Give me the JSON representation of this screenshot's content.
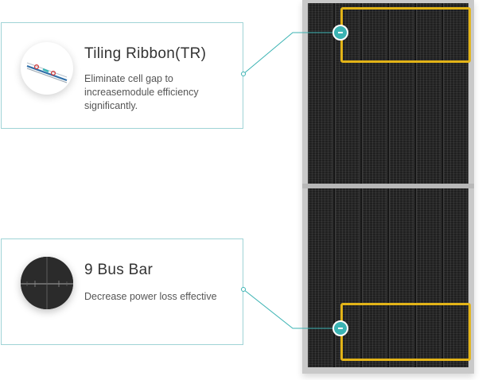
{
  "features": [
    {
      "title": "Tiling Ribbon(TR)",
      "description": "Eliminate cell gap to increasemodule efficiency significantly.",
      "icon": "tiling-ribbon-icon"
    },
    {
      "title": "9 Bus Bar",
      "description": "Decrease power loss effective",
      "icon": "bus-bar-cell-icon"
    }
  ],
  "colors": {
    "card_border": "#9fd3d6",
    "connector": "#3bb3b3",
    "highlight": "#e3b418",
    "marker": "#3bb3b3",
    "panel_frame": "#c9c9c9",
    "cell": "#141414"
  }
}
